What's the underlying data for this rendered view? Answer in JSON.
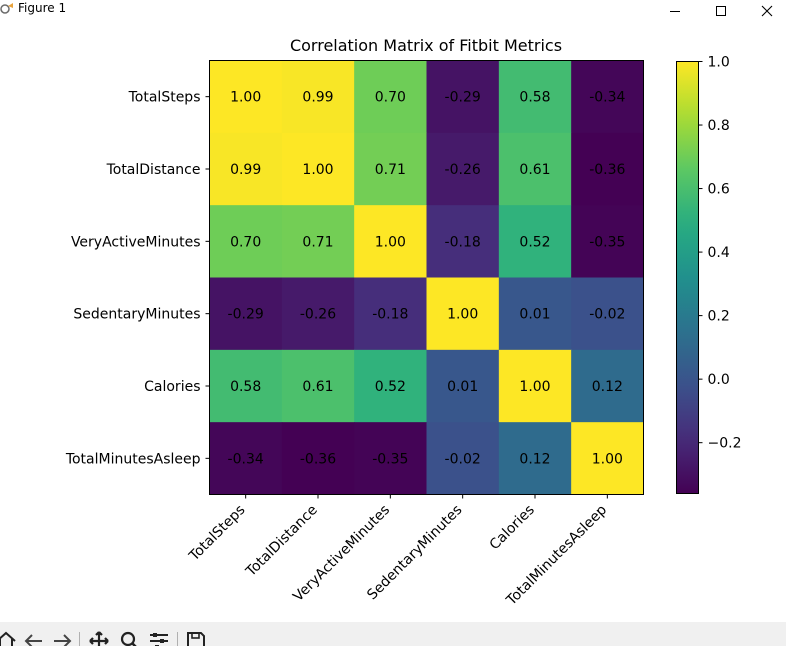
{
  "window": {
    "title": "Figure 1",
    "controls": [
      "minimize-icon",
      "maximize-icon",
      "close-icon"
    ]
  },
  "toolbar": {
    "icons": [
      "home-icon",
      "back-icon",
      "forward-icon",
      "pan-icon",
      "zoom-icon",
      "configure-subplots-icon",
      "save-icon"
    ]
  },
  "chart_data": {
    "type": "heatmap",
    "title": "Correlation Matrix of Fitbit Metrics",
    "xlabel": "",
    "ylabel": "",
    "labels": [
      "TotalSteps",
      "TotalDistance",
      "VeryActiveMinutes",
      "SedentaryMinutes",
      "Calories",
      "TotalMinutesAsleep"
    ],
    "matrix": [
      [
        1.0,
        0.99,
        0.7,
        -0.29,
        0.58,
        -0.34
      ],
      [
        0.99,
        1.0,
        0.71,
        -0.26,
        0.61,
        -0.36
      ],
      [
        0.7,
        0.71,
        1.0,
        -0.18,
        0.52,
        -0.35
      ],
      [
        -0.29,
        -0.26,
        -0.18,
        1.0,
        0.01,
        -0.02
      ],
      [
        0.58,
        0.61,
        0.52,
        0.01,
        1.0,
        0.12
      ],
      [
        -0.34,
        -0.36,
        -0.35,
        -0.02,
        0.12,
        1.0
      ]
    ],
    "annotation_format": "2 decimals",
    "colormap": "viridis",
    "vmin": -0.36,
    "vmax": 1.0,
    "colorbar_ticks": [
      1.0,
      0.8,
      0.6,
      0.4,
      0.2,
      0.0,
      -0.2
    ],
    "colorbar_tick_labels": [
      "1.0",
      "0.8",
      "0.6",
      "0.4",
      "0.2",
      "0.0",
      "−0.2"
    ],
    "grid": false
  }
}
